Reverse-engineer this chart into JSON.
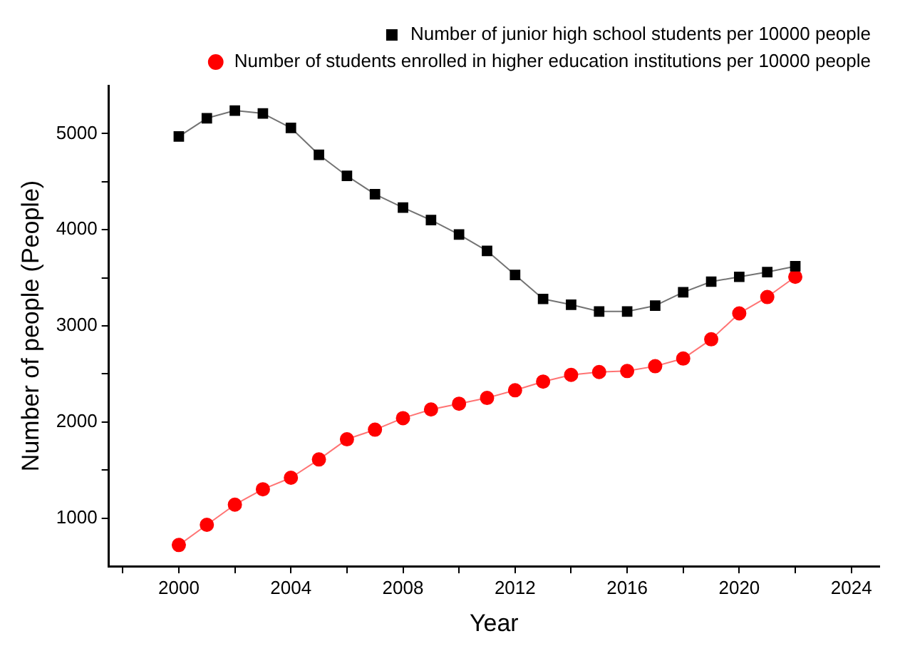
{
  "chart_data": {
    "type": "line",
    "xlabel": "Year",
    "ylabel": "Number of people (People)",
    "x": [
      2000,
      2001,
      2002,
      2003,
      2004,
      2005,
      2006,
      2007,
      2008,
      2009,
      2010,
      2011,
      2012,
      2013,
      2014,
      2015,
      2016,
      2017,
      2018,
      2019,
      2020,
      2021,
      2022
    ],
    "series": [
      {
        "name": "Number of junior high school students per 10000 people",
        "color": "#000000",
        "marker": "square",
        "values": [
          4970,
          5160,
          5240,
          5210,
          5060,
          4780,
          4560,
          4370,
          4230,
          4100,
          3950,
          3780,
          3530,
          3280,
          3220,
          3150,
          3150,
          3210,
          3350,
          3460,
          3510,
          3560,
          3620
        ]
      },
      {
        "name": "Number of students enrolled in higher education institutions per 10000 people",
        "color": "#ff0000",
        "marker": "circle",
        "values": [
          720,
          930,
          1140,
          1300,
          1420,
          1610,
          1820,
          1920,
          2040,
          2130,
          2190,
          2250,
          2330,
          2420,
          2490,
          2520,
          2530,
          2580,
          2660,
          2860,
          3130,
          3300,
          3510
        ]
      }
    ],
    "xlim": [
      1997.5,
      2025
    ],
    "xticks": [
      {
        "value": 1998,
        "label": null
      },
      2000,
      {
        "value": 2002,
        "label": null
      },
      2004,
      {
        "value": 2006,
        "label": null
      },
      2008,
      {
        "value": 2010,
        "label": null
      },
      2012,
      {
        "value": 2014,
        "label": null
      },
      2016,
      {
        "value": 2018,
        "label": null
      },
      2020,
      {
        "value": 2022,
        "label": null
      },
      2024
    ],
    "ylim": [
      500,
      5500
    ],
    "yticks": [
      {
        "value": 1000,
        "label": "1000"
      },
      {
        "value": 1500,
        "label": null
      },
      {
        "value": 2000,
        "label": "2000"
      },
      {
        "value": 2500,
        "label": null
      },
      {
        "value": 3000,
        "label": "3000"
      },
      {
        "value": 3500,
        "label": null
      },
      {
        "value": 4000,
        "label": "4000"
      },
      {
        "value": 4500,
        "label": null
      },
      {
        "value": 5000,
        "label": "5000"
      }
    ],
    "grid": false,
    "legend": "top",
    "line_style": "solid"
  }
}
